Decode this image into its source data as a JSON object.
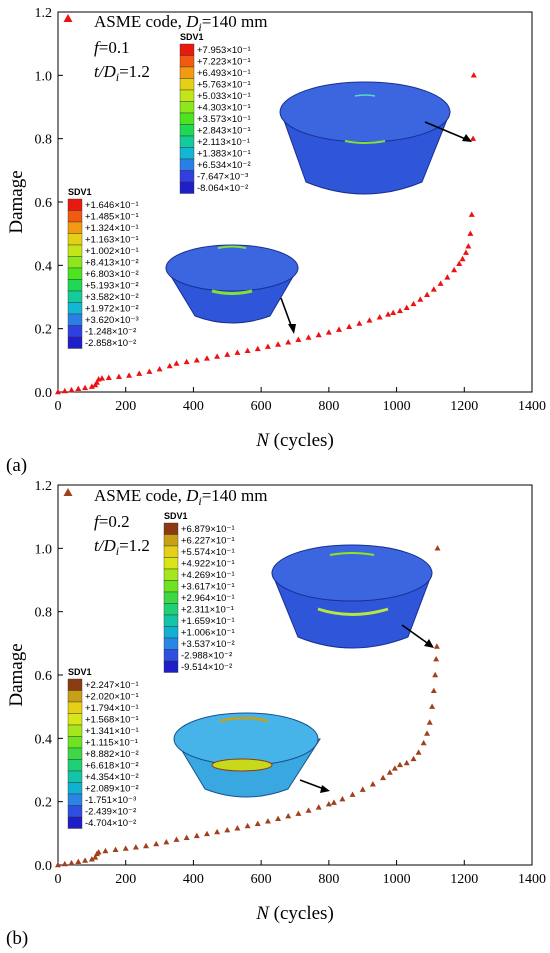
{
  "panel_labels": [
    "(a)",
    "(b)"
  ],
  "chart_data": [
    {
      "type": "scatter",
      "panel": "(a)",
      "xlabel_var": "N",
      "xlabel_unit": " (cycles)",
      "ylabel": "Damage",
      "xlim": [
        0,
        1400
      ],
      "ylim": [
        0,
        1.2
      ],
      "xticks": [
        0,
        200,
        400,
        600,
        800,
        1000,
        1200,
        1400
      ],
      "yticks": [
        0.0,
        0.2,
        0.4,
        0.6,
        0.8,
        1.0,
        1.2
      ],
      "grid": false,
      "legend_position": "top-left",
      "legend_label": "ASME code, ",
      "legend_label_var": "D",
      "legend_label_sub": "i",
      "legend_label_tail": "=140 mm",
      "params": [
        "f=0.1",
        "t/Di=1.2"
      ],
      "param_f": {
        "var": "f",
        "value": "=0.1"
      },
      "param_t": {
        "var": "t/D",
        "sub": "i",
        "value": "=1.2"
      },
      "marker_color": "#ee1111",
      "series": [
        {
          "points": [
            [
              0,
              0.0
            ],
            [
              20,
              0.003
            ],
            [
              40,
              0.006
            ],
            [
              60,
              0.01
            ],
            [
              80,
              0.013
            ],
            [
              100,
              0.017
            ],
            [
              110,
              0.022
            ],
            [
              115,
              0.03
            ],
            [
              120,
              0.04
            ],
            [
              130,
              0.043
            ],
            [
              150,
              0.045
            ],
            [
              180,
              0.048
            ],
            [
              210,
              0.052
            ],
            [
              240,
              0.058
            ],
            [
              270,
              0.064
            ],
            [
              300,
              0.072
            ],
            [
              330,
              0.082
            ],
            [
              350,
              0.09
            ],
            [
              380,
              0.095
            ],
            [
              410,
              0.1
            ],
            [
              440,
              0.106
            ],
            [
              470,
              0.112
            ],
            [
              500,
              0.118
            ],
            [
              530,
              0.124
            ],
            [
              560,
              0.13
            ],
            [
              590,
              0.136
            ],
            [
              620,
              0.143
            ],
            [
              650,
              0.15
            ],
            [
              680,
              0.157
            ],
            [
              710,
              0.165
            ],
            [
              740,
              0.172
            ],
            [
              770,
              0.18
            ],
            [
              800,
              0.188
            ],
            [
              830,
              0.197
            ],
            [
              860,
              0.206
            ],
            [
              890,
              0.216
            ],
            [
              920,
              0.226
            ],
            [
              950,
              0.236
            ],
            [
              975,
              0.245
            ],
            [
              990,
              0.25
            ],
            [
              1010,
              0.256
            ],
            [
              1030,
              0.266
            ],
            [
              1050,
              0.278
            ],
            [
              1070,
              0.292
            ],
            [
              1090,
              0.307
            ],
            [
              1110,
              0.324
            ],
            [
              1130,
              0.342
            ],
            [
              1150,
              0.362
            ],
            [
              1170,
              0.385
            ],
            [
              1185,
              0.405
            ],
            [
              1195,
              0.42
            ],
            [
              1205,
              0.44
            ],
            [
              1212,
              0.46
            ],
            [
              1218,
              0.5
            ],
            [
              1222,
              0.56
            ],
            [
              1226,
              0.8
            ],
            [
              1228,
              1.0
            ]
          ]
        }
      ],
      "legends": [
        {
          "title": "SDV1",
          "values": [
            "+7.953×10⁻¹",
            "+7.223×10⁻¹",
            "+6.493×10⁻¹",
            "+5.763×10⁻¹",
            "+5.033×10⁻¹",
            "+4.303×10⁻¹",
            "+3.573×10⁻¹",
            "+2.843×10⁻¹",
            "+2.113×10⁻¹",
            "+1.383×10⁻¹",
            "+6.534×10⁻²",
            "-7.647×10⁻³",
            "-8.064×10⁻²"
          ],
          "colors": [
            "#e8190f",
            "#f25a10",
            "#f49a12",
            "#e6d016",
            "#c4e619",
            "#8ee61c",
            "#4ee320",
            "#1fd855",
            "#14cc99",
            "#12b7d3",
            "#2a7fe6",
            "#2f3fe0",
            "#1f1fc8"
          ]
        },
        {
          "title": "SDV1",
          "values": [
            "+1.646×10⁻¹",
            "+1.485×10⁻¹",
            "+1.324×10⁻¹",
            "+1.163×10⁻¹",
            "+1.002×10⁻¹",
            "+8.413×10⁻²",
            "+6.803×10⁻²",
            "+5.193×10⁻²",
            "+3.582×10⁻²",
            "+1.972×10⁻²",
            "+3.620×10⁻³",
            "-1.248×10⁻²",
            "-2.858×10⁻²"
          ],
          "colors": [
            "#e8190f",
            "#f25a10",
            "#f49a12",
            "#e6d016",
            "#c4e619",
            "#8ee61c",
            "#4ee320",
            "#1fd855",
            "#14cc99",
            "#12b7d3",
            "#2a7fe6",
            "#2f3fe0",
            "#1f1fc8"
          ]
        }
      ]
    },
    {
      "type": "scatter",
      "panel": "(b)",
      "xlabel_var": "N",
      "xlabel_unit": " (cycles)",
      "ylabel": "Damage",
      "xlim": [
        0,
        1400
      ],
      "ylim": [
        0,
        1.2
      ],
      "xticks": [
        0,
        200,
        400,
        600,
        800,
        1000,
        1200,
        1400
      ],
      "yticks": [
        0.0,
        0.2,
        0.4,
        0.6,
        0.8,
        1.0,
        1.2
      ],
      "grid": false,
      "legend_position": "top-left",
      "legend_label": "ASME code, ",
      "legend_label_var": "D",
      "legend_label_sub": "i",
      "legend_label_tail": "=140 mm",
      "params": [
        "f=0.2",
        "t/Di=1.2"
      ],
      "param_f": {
        "var": "f",
        "value": "=0.2"
      },
      "param_t": {
        "var": "t/D",
        "sub": "i",
        "value": "=1.2"
      },
      "marker_color": "#a0401c",
      "series": [
        {
          "points": [
            [
              0,
              0.0
            ],
            [
              20,
              0.003
            ],
            [
              40,
              0.006
            ],
            [
              60,
              0.01
            ],
            [
              80,
              0.014
            ],
            [
              100,
              0.018
            ],
            [
              110,
              0.024
            ],
            [
              115,
              0.035
            ],
            [
              120,
              0.04
            ],
            [
              140,
              0.044
            ],
            [
              170,
              0.048
            ],
            [
              200,
              0.052
            ],
            [
              230,
              0.056
            ],
            [
              260,
              0.06
            ],
            [
              290,
              0.066
            ],
            [
              320,
              0.072
            ],
            [
              350,
              0.08
            ],
            [
              380,
              0.086
            ],
            [
              410,
              0.092
            ],
            [
              440,
              0.098
            ],
            [
              470,
              0.104
            ],
            [
              500,
              0.11
            ],
            [
              530,
              0.116
            ],
            [
              560,
              0.123
            ],
            [
              590,
              0.13
            ],
            [
              620,
              0.138
            ],
            [
              650,
              0.146
            ],
            [
              680,
              0.154
            ],
            [
              710,
              0.162
            ],
            [
              740,
              0.172
            ],
            [
              770,
              0.182
            ],
            [
              800,
              0.192
            ],
            [
              815,
              0.197
            ],
            [
              840,
              0.208
            ],
            [
              870,
              0.222
            ],
            [
              900,
              0.238
            ],
            [
              930,
              0.255
            ],
            [
              960,
              0.275
            ],
            [
              980,
              0.292
            ],
            [
              995,
              0.305
            ],
            [
              1010,
              0.316
            ],
            [
              1030,
              0.322
            ],
            [
              1050,
              0.335
            ],
            [
              1065,
              0.355
            ],
            [
              1080,
              0.385
            ],
            [
              1090,
              0.415
            ],
            [
              1098,
              0.45
            ],
            [
              1105,
              0.5
            ],
            [
              1110,
              0.55
            ],
            [
              1114,
              0.6
            ],
            [
              1117,
              0.65
            ],
            [
              1119,
              0.69
            ],
            [
              1121,
              1.0
            ]
          ]
        }
      ],
      "legends": [
        {
          "title": "SDV1",
          "values": [
            "+6.879×10⁻¹",
            "+6.227×10⁻¹",
            "+5.574×10⁻¹",
            "+4.922×10⁻¹",
            "+4.269×10⁻¹",
            "+3.617×10⁻¹",
            "+2.964×10⁻¹",
            "+2.311×10⁻¹",
            "+1.659×10⁻¹",
            "+1.006×10⁻¹",
            "+3.537×10⁻²",
            "-2.988×10⁻²",
            "-9.514×10⁻²"
          ],
          "colors": [
            "#8b3a12",
            "#c8a018",
            "#e6d016",
            "#d8e619",
            "#a6e61c",
            "#6ee320",
            "#3fd845",
            "#1fd077",
            "#14c4a8",
            "#12b0d3",
            "#2a86e6",
            "#2f4fe0",
            "#1f1fc8"
          ]
        },
        {
          "title": "SDV1",
          "values": [
            "+2.247×10⁻¹",
            "+2.020×10⁻¹",
            "+1.794×10⁻¹",
            "+1.568×10⁻¹",
            "+1.341×10⁻¹",
            "+1.115×10⁻¹",
            "+8.882×10⁻²",
            "+6.618×10⁻²",
            "+4.354×10⁻²",
            "+2.089×10⁻²",
            "-1.751×10⁻³",
            "-2.439×10⁻²",
            "-4.704×10⁻²"
          ],
          "colors": [
            "#8b3a12",
            "#c8a018",
            "#e6d016",
            "#d8e619",
            "#a6e61c",
            "#6ee320",
            "#3fd845",
            "#1fd077",
            "#14c4a8",
            "#12b0d3",
            "#2a86e6",
            "#2f4fe0",
            "#1f1fc8"
          ]
        }
      ]
    }
  ]
}
